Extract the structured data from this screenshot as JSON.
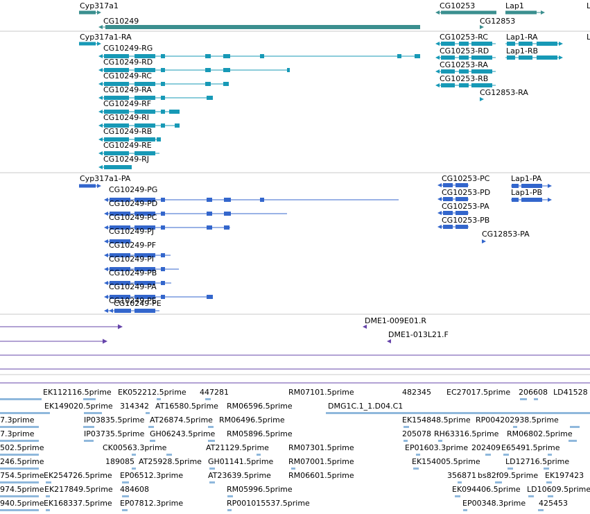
{
  "colors": {
    "gene": "#3b8f8f",
    "transcript_rna": "#1799b6",
    "transcript_protein": "#3366cc",
    "clone": "#6644aa",
    "est": "#8fb8dc",
    "separator": "#c8c8c8"
  },
  "gene_track": {
    "labels": [
      "Cyp317a1",
      "CG10249",
      "CG10253",
      "CG12853",
      "Lap1"
    ]
  },
  "transcript_track": {
    "labels": [
      "Cyp317a1-RA",
      "CG10249-RG",
      "CG10249-RD",
      "CG10249-RC",
      "CG10249-RA",
      "CG10249-RF",
      "CG10249-RI",
      "CG10249-RB",
      "CG10249-RE",
      "CG10249-RJ",
      "CG10253-RC",
      "CG10253-RD",
      "CG10253-RA",
      "CG10253-RB",
      "CG12853-RA",
      "Lap1-RA",
      "Lap1-RB"
    ]
  },
  "protein_track": {
    "labels": [
      "Cyp317a1-PA",
      "CG10249-PG",
      "CG10249-PD",
      "CG10249-PC",
      "CG10249-PJ",
      "CG10249-PF",
      "CG10249-PI",
      "CG10249-PB",
      "CG10249-PA",
      "CG10249-PE",
      "CG10253-PC",
      "CG10253-PD",
      "CG10253-PA",
      "CG10253-PB",
      "CG12853-PA",
      "Lap1-PA",
      "Lap1-PB"
    ]
  },
  "clone_track": {
    "labels": [
      "DME1-009E01.R",
      "DME1-013L21.F"
    ]
  },
  "est_track": {
    "labels": [
      "EK112116.5prime",
      "EK052212.5prime",
      "447281",
      "RM07101.5prime",
      "482345",
      "EC27017.5prime",
      "206608",
      "LD41528",
      "EK149020.5prime",
      "314342",
      "AT16580.5prime",
      "RM06596.5prime",
      "DMG1C.1_1.D04.C1",
      "7.3prime",
      "IP03835.5prime",
      "AT26874.5prime",
      "RM06496.5prime",
      "EK154848.5prime",
      "RP004202938.5prime",
      "7.3prime",
      "IP03735.5prime",
      "GH06243.5prime",
      "RM05896.5prime",
      "205078",
      "RH63316.5prime",
      "RM06802.5prime",
      "502.5prime",
      "CK00563.3prime",
      "AT21129.5prime",
      "RM07301.5prime",
      "EP01603.3prime",
      "202409",
      "E65491.5prime",
      "246.5prime",
      "189085",
      "AT25928.5prime",
      "GH01141.5prime",
      "RM07001.5prime",
      "EK154005.5prime",
      "LD12716.5prime",
      "754.5prime",
      "EK254726.5prime",
      "EP06512.3prime",
      "AT23639.5prime",
      "RM06601.5prime",
      "356871",
      "bs82f09.5prime",
      "EK197423",
      "974.5prime",
      "EK217849.5prime",
      "484608",
      "RM05996.5prime",
      "EK094406.5prime",
      "LD10609.5prime",
      "940.5prime",
      "EK168337.5prime",
      "EP07812.3prime",
      "RP001015537.5prime",
      "EP00348.3prime",
      "425453"
    ]
  }
}
